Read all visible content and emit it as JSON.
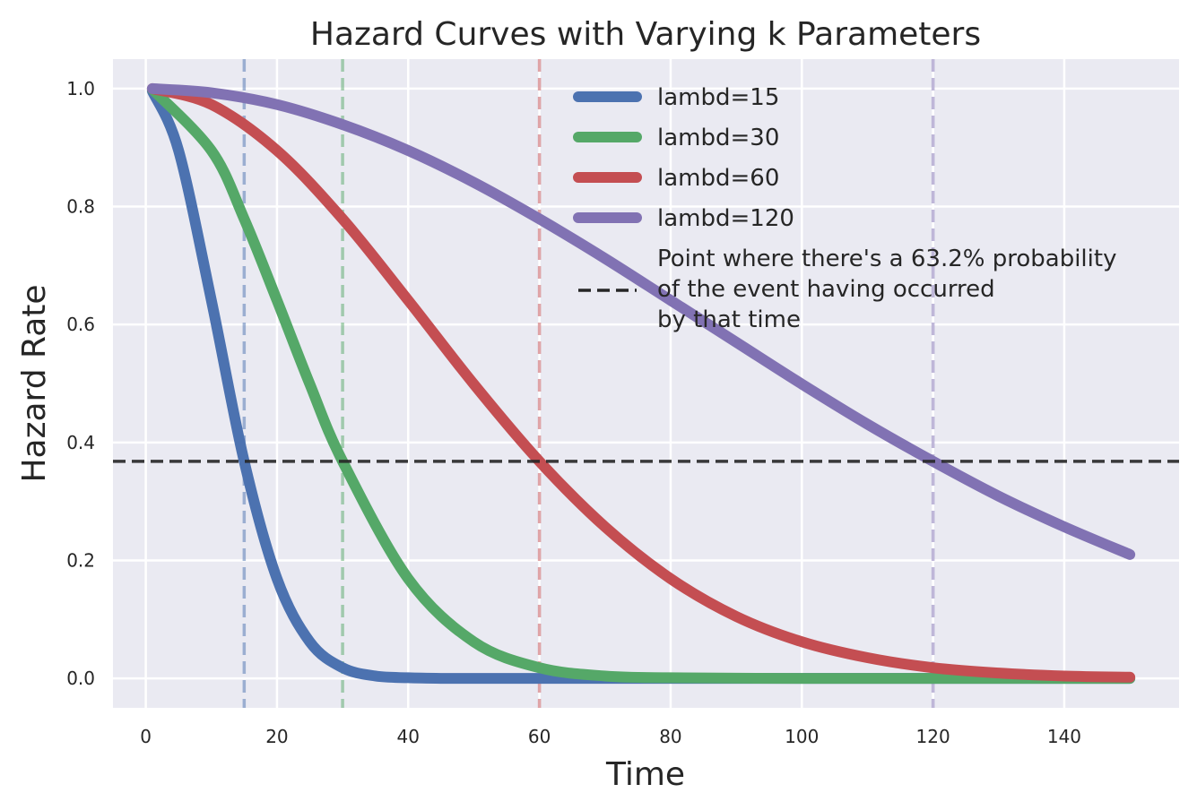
{
  "chart_data": {
    "type": "line",
    "title": "Hazard Curves with Varying k Parameters",
    "xlabel": "Time",
    "ylabel": "Hazard Rate",
    "xlim": [
      -5,
      157.5
    ],
    "ylim": [
      -0.05,
      1.05
    ],
    "xticks": [
      0,
      20,
      40,
      60,
      80,
      100,
      120,
      140
    ],
    "yticks": [
      0.0,
      0.2,
      0.4,
      0.6,
      0.8,
      1.0
    ],
    "xtick_labels": [
      "0",
      "20",
      "40",
      "60",
      "80",
      "100",
      "120",
      "140"
    ],
    "ytick_labels": [
      "0.0",
      "0.2",
      "0.4",
      "0.6",
      "0.8",
      "1.0"
    ],
    "grid": true,
    "background": "#eaeaf2",
    "legend_position": "top-right",
    "series": [
      {
        "name": "lambd=15",
        "color": "#4c72b0",
        "x": [
          1,
          5,
          10,
          15,
          20,
          25,
          30,
          35,
          40,
          45,
          50,
          60,
          80,
          100,
          150
        ],
        "values": [
          0.996,
          0.895,
          0.641,
          0.368,
          0.169,
          0.062,
          0.018,
          0.004,
          0.001,
          0.0,
          0.0,
          0.0,
          0.0,
          0.0,
          0.0
        ]
      },
      {
        "name": "lambd=30",
        "color": "#55a868",
        "x": [
          1,
          10,
          15,
          20,
          25,
          30,
          40,
          50,
          60,
          70,
          80,
          100,
          120,
          150
        ],
        "values": [
          0.999,
          0.895,
          0.779,
          0.641,
          0.499,
          0.368,
          0.169,
          0.062,
          0.018,
          0.004,
          0.001,
          0.0,
          0.0,
          0.0
        ]
      },
      {
        "name": "lambd=60",
        "color": "#c44e52",
        "x": [
          1,
          10,
          20,
          30,
          40,
          50,
          60,
          70,
          80,
          90,
          100,
          110,
          120,
          130,
          140,
          150
        ],
        "values": [
          1.0,
          0.973,
          0.895,
          0.779,
          0.641,
          0.499,
          0.368,
          0.257,
          0.169,
          0.105,
          0.062,
          0.035,
          0.018,
          0.009,
          0.004,
          0.002
        ]
      },
      {
        "name": "lambd=120",
        "color": "#8172b3",
        "x": [
          1,
          10,
          20,
          30,
          40,
          50,
          60,
          70,
          80,
          90,
          100,
          110,
          120,
          130,
          140,
          150
        ],
        "values": [
          1.0,
          0.993,
          0.973,
          0.939,
          0.895,
          0.841,
          0.779,
          0.712,
          0.641,
          0.57,
          0.499,
          0.431,
          0.368,
          0.309,
          0.257,
          0.21
        ]
      }
    ],
    "reference_lines": {
      "horizontal": {
        "y": 0.368,
        "color": "#262626",
        "label": "Point where there's a 63.2% probability\nof the event having occurred\nby that time"
      },
      "vertical": [
        {
          "x": 15,
          "color": "#4c72b0"
        },
        {
          "x": 30,
          "color": "#55a868"
        },
        {
          "x": 60,
          "color": "#c44e52"
        },
        {
          "x": 120,
          "color": "#8172b3"
        }
      ]
    }
  }
}
